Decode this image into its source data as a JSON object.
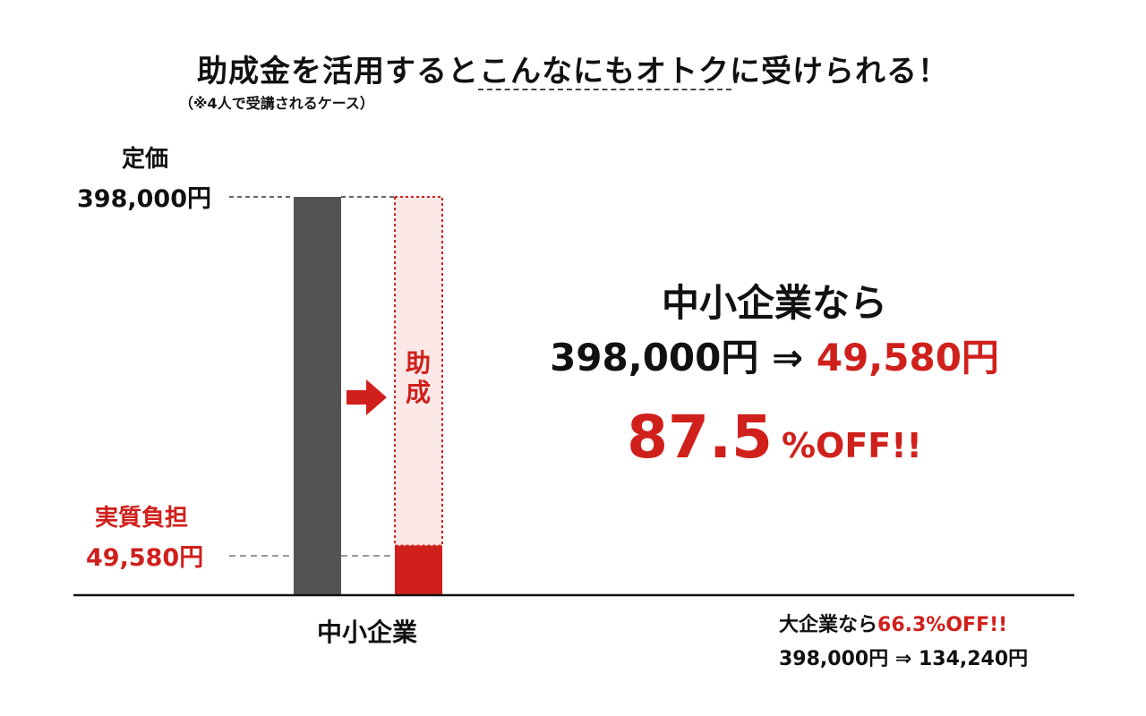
{
  "title": "助成金を活用するとこんなにもオトクに受けられる！",
  "note": "（※4人で受講されるケース）",
  "labels": {
    "teika": "定価",
    "teika_value": "398,000円",
    "jisshitsu": "実質負担",
    "jisshitsu_value": "49,580円",
    "josei": "助成"
  },
  "chart_data": {
    "type": "bar",
    "categories": [
      "中小企業"
    ],
    "series": [
      {
        "values": [
          398000
        ]
      },
      {
        "values": [
          49580
        ]
      }
    ],
    "ylim": [
      0,
      398000
    ],
    "annotation": "助成",
    "xlabel": "",
    "ylabel": ""
  },
  "summary": {
    "headline": "中小企業なら",
    "price_before": "398,000円",
    "arrow": "⇒",
    "price_after": "49,580円",
    "discount_number": "87.5",
    "discount_suffix": "%OFF!!"
  },
  "large_corp": {
    "prefix": "大企業なら",
    "discount": "66.3%OFF!!",
    "line2": "398,000円 ⇒ 134,240円"
  },
  "colors": {
    "gray_bar": "#535353",
    "red": "#d0201c",
    "light_red": "#fbe8e7"
  }
}
